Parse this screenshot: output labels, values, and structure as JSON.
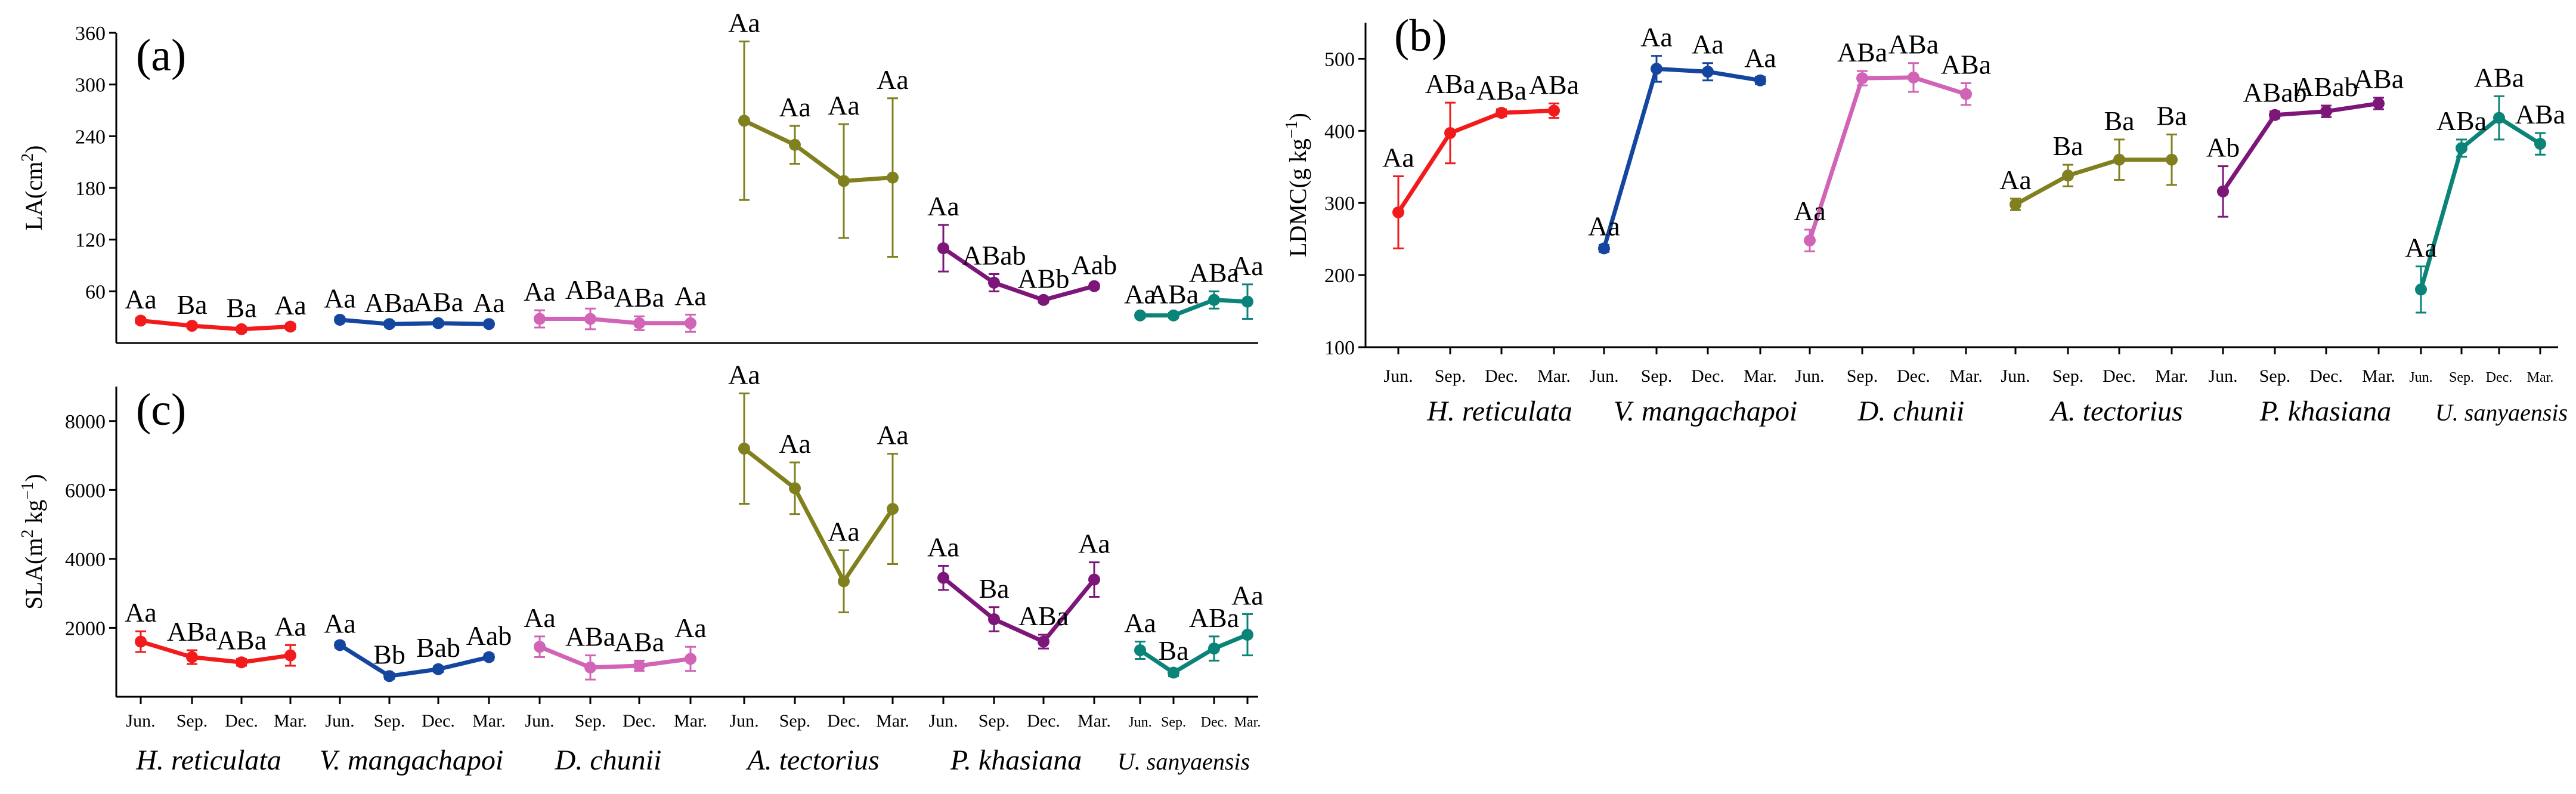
{
  "chart_data": [
    {
      "panel": "(a)",
      "type": "line",
      "ylabel": "LA(cm²)",
      "ylabel_main": "LA(cm",
      "ylabel_sup": "2",
      "ylabel_tail": ")",
      "ylim": [
        0,
        360
      ],
      "yticks": [
        "60",
        "120",
        "180",
        "240",
        "300",
        "360"
      ],
      "ytick_values": [
        60,
        120,
        180,
        240,
        300,
        360
      ],
      "xticks_shown": false,
      "series": [
        {
          "name": "H. reticulata",
          "color": "#f21b1b",
          "categories": [
            "Jun.",
            "Sep.",
            "Dec.",
            "Mar."
          ],
          "values": [
            26,
            20,
            16,
            19
          ],
          "errors": [
            3,
            3,
            3,
            3
          ],
          "labels": [
            "Aa",
            "Ba",
            "Ba",
            "Aa"
          ]
        },
        {
          "name": "V. mangachapoi",
          "color": "#1446a0",
          "categories": [
            "Jun.",
            "Sep.",
            "Dec.",
            "Mar."
          ],
          "values": [
            27,
            22,
            23,
            22
          ],
          "errors": [
            3,
            3,
            3,
            3
          ],
          "labels": [
            "Aa",
            "ABa",
            "ABa",
            "Aa"
          ]
        },
        {
          "name": "D. chunii",
          "color": "#d164b6",
          "categories": [
            "Jun.",
            "Sep.",
            "Dec.",
            "Mar."
          ],
          "values": [
            28,
            28,
            23,
            23
          ],
          "errors": [
            10,
            12,
            8,
            10
          ],
          "labels": [
            "Aa",
            "ABa",
            "ABa",
            "Aa"
          ]
        },
        {
          "name": "A. tectorius",
          "color": "#80801e",
          "categories": [
            "Jun.",
            "Sep.",
            "Dec.",
            "Mar."
          ],
          "values": [
            258,
            230,
            188,
            192
          ],
          "errors": [
            92,
            22,
            66,
            92
          ],
          "labels": [
            "Aa",
            "Aa",
            "Aa",
            "Aa"
          ]
        },
        {
          "name": "P. khasiana",
          "color": "#7c1679",
          "categories": [
            "Jun.",
            "Sep.",
            "Dec.",
            "Mar."
          ],
          "values": [
            110,
            70,
            50,
            66
          ],
          "errors": [
            27,
            10,
            3,
            3
          ],
          "labels": [
            "Aa",
            "ABab",
            "ABb",
            "Aab"
          ]
        },
        {
          "name": "U. sanyaensis",
          "color": "#0a8379",
          "categories": [
            "Jun.",
            "Sep.",
            "Dec.",
            "Mar."
          ],
          "values": [
            32,
            32,
            50,
            48
          ],
          "errors": [
            3,
            3,
            10,
            20
          ],
          "labels": [
            "Aa",
            "ABa",
            "ABa",
            "Aa"
          ]
        }
      ]
    },
    {
      "panel": "(b)",
      "type": "line",
      "ylabel": "LDMC(g kg⁻¹)",
      "ylabel_main": "LDMC(g kg",
      "ylabel_sup": "−1",
      "ylabel_tail": ")",
      "ylim": [
        100,
        550
      ],
      "yticks": [
        "100",
        "200",
        "300",
        "400",
        "500"
      ],
      "ytick_values": [
        100,
        200,
        300,
        400,
        500
      ],
      "xticks_shown": true,
      "series": [
        {
          "name": "H. reticulata",
          "color": "#f21b1b",
          "categories": [
            "Jun.",
            "Sep.",
            "Dec.",
            "Mar."
          ],
          "values": [
            287,
            397,
            425,
            428
          ],
          "errors": [
            50,
            42,
            5,
            10
          ],
          "labels": [
            "Aa",
            "ABa",
            "ABa",
            "ABa"
          ]
        },
        {
          "name": "V. mangachapoi",
          "color": "#1446a0",
          "categories": [
            "Jun.",
            "Sep.",
            "Dec.",
            "Mar."
          ],
          "values": [
            237,
            486,
            482,
            470
          ],
          "errors": [
            5,
            18,
            12,
            5
          ],
          "labels": [
            "Aa",
            "Aa",
            "Aa",
            "Aa"
          ]
        },
        {
          "name": "D. chunii",
          "color": "#d164b6",
          "categories": [
            "Jun.",
            "Sep.",
            "Dec.",
            "Mar."
          ],
          "values": [
            248,
            473,
            474,
            451
          ],
          "errors": [
            15,
            10,
            20,
            15
          ],
          "labels": [
            "Aa",
            "ABa",
            "ABa",
            "ABa"
          ]
        },
        {
          "name": "A. tectorius",
          "color": "#80801e",
          "categories": [
            "Jun.",
            "Sep.",
            "Dec.",
            "Mar."
          ],
          "values": [
            298,
            338,
            360,
            360
          ],
          "errors": [
            8,
            15,
            28,
            35
          ],
          "labels": [
            "Aa",
            "Ba",
            "Ba",
            "Ba"
          ]
        },
        {
          "name": "P. khasiana",
          "color": "#7c1679",
          "categories": [
            "Jun.",
            "Sep.",
            "Dec.",
            "Mar."
          ],
          "values": [
            316,
            422,
            427,
            438
          ],
          "errors": [
            35,
            5,
            8,
            8
          ],
          "labels": [
            "Ab",
            "ABab",
            "ABab",
            "ABa"
          ]
        },
        {
          "name": "U. sanyaensis",
          "color": "#0a8379",
          "categories": [
            "Jun.",
            "Sep.",
            "Dec.",
            "Mar."
          ],
          "values": [
            180,
            376,
            418,
            382
          ],
          "errors": [
            32,
            12,
            30,
            15
          ],
          "labels": [
            "Aa",
            "ABa",
            "ABa",
            "ABa"
          ]
        }
      ]
    },
    {
      "panel": "(c)",
      "type": "line",
      "ylabel": "SLA(m² kg⁻¹)",
      "ylabel_main": "SLA(m",
      "ylabel_mid": " kg",
      "ylabel_sup": "2",
      "ylabel_sup2": "−1",
      "ylabel_tail": ")",
      "ylim": [
        0,
        9000
      ],
      "yticks": [
        "2000",
        "4000",
        "6000",
        "8000"
      ],
      "ytick_values": [
        2000,
        4000,
        6000,
        8000
      ],
      "xticks_shown": true,
      "series": [
        {
          "name": "H. reticulata",
          "color": "#f21b1b",
          "categories": [
            "Jun.",
            "Sep.",
            "Dec.",
            "Mar."
          ],
          "values": [
            1600,
            1150,
            1000,
            1200
          ],
          "errors": [
            300,
            200,
            100,
            300
          ],
          "labels": [
            "Aa",
            "ABa",
            "ABa",
            "Aa"
          ]
        },
        {
          "name": "V. mangachapoi",
          "color": "#1446a0",
          "categories": [
            "Jun.",
            "Sep.",
            "Dec.",
            "Mar."
          ],
          "values": [
            1500,
            600,
            800,
            1150
          ],
          "errors": [
            80,
            80,
            80,
            80
          ],
          "labels": [
            "Aa",
            "Bb",
            "Bab",
            "Aab"
          ]
        },
        {
          "name": "D. chunii",
          "color": "#d164b6",
          "categories": [
            "Jun.",
            "Sep.",
            "Dec.",
            "Mar."
          ],
          "values": [
            1450,
            850,
            900,
            1100
          ],
          "errors": [
            300,
            350,
            150,
            350
          ],
          "labels": [
            "Aa",
            "ABa",
            "ABa",
            "Aa"
          ]
        },
        {
          "name": "A. tectorius",
          "color": "#80801e",
          "categories": [
            "Jun.",
            "Sep.",
            "Dec.",
            "Mar."
          ],
          "values": [
            7200,
            6050,
            3350,
            5450
          ],
          "errors": [
            1600,
            750,
            900,
            1600
          ],
          "labels": [
            "Aa",
            "Aa",
            "Aa",
            "Aa"
          ]
        },
        {
          "name": "P. khasiana",
          "color": "#7c1679",
          "categories": [
            "Jun.",
            "Sep.",
            "Dec.",
            "Mar."
          ],
          "values": [
            3450,
            2250,
            1600,
            3400
          ],
          "errors": [
            350,
            350,
            200,
            500
          ],
          "labels": [
            "Aa",
            "Ba",
            "ABa",
            "Aa"
          ]
        },
        {
          "name": "U. sanyaensis",
          "color": "#0a8379",
          "categories": [
            "Jun.",
            "Sep.",
            "Dec.",
            "Mar."
          ],
          "values": [
            1350,
            700,
            1400,
            1800
          ],
          "errors": [
            250,
            100,
            350,
            600
          ],
          "labels": [
            "Aa",
            "Ba",
            "ABa",
            "Aa"
          ]
        }
      ]
    }
  ]
}
